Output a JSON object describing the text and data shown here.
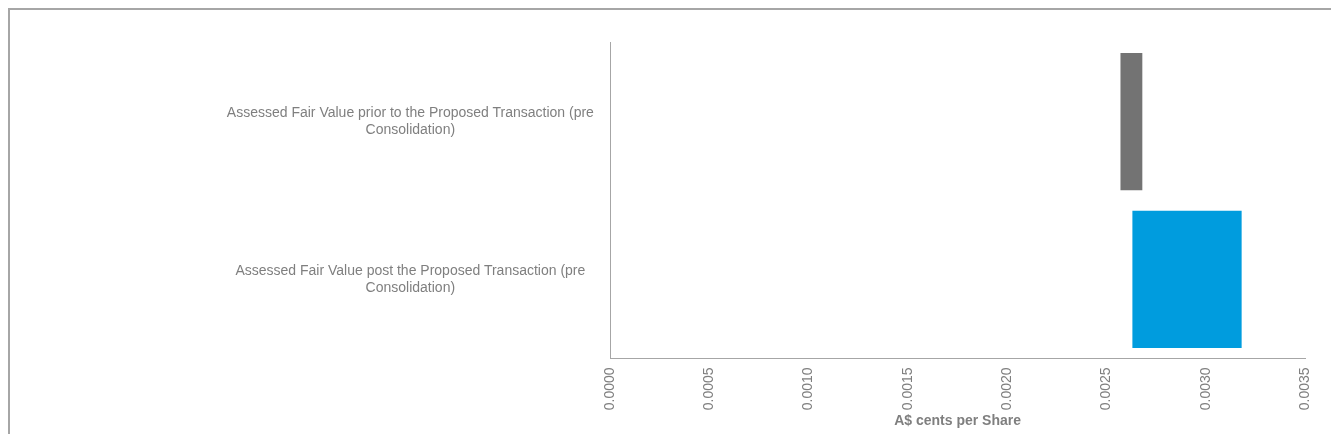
{
  "chart_data": {
    "type": "bar",
    "orientation": "horizontal",
    "xlabel": "A$ cents per Share",
    "categories": [
      "Assessed Fair Value prior to the Proposed Transaction (pre Consolidation)",
      "Assessed Fair Value post the Proposed Transaction (pre Consolidation)"
    ],
    "values": [
      0.00011,
      0.00055
    ],
    "base": [
      0.00257,
      0.00263
    ],
    "colors": [
      "#737373",
      "#009cde"
    ],
    "xlim": [
      0,
      0.0035
    ],
    "xticks": [
      {
        "value": 0,
        "label": "0.0000"
      },
      {
        "value": 0.0005,
        "label": "0.0005"
      },
      {
        "value": 0.001,
        "label": "0.0010"
      },
      {
        "value": 0.0015,
        "label": "0.0015"
      },
      {
        "value": 0.002,
        "label": "0.0020"
      },
      {
        "value": 0.0025,
        "label": "0.0025"
      },
      {
        "value": 0.003,
        "label": "0.0030"
      },
      {
        "value": 0.0035,
        "label": "0.0035"
      }
    ],
    "grid": false,
    "legend": false
  }
}
